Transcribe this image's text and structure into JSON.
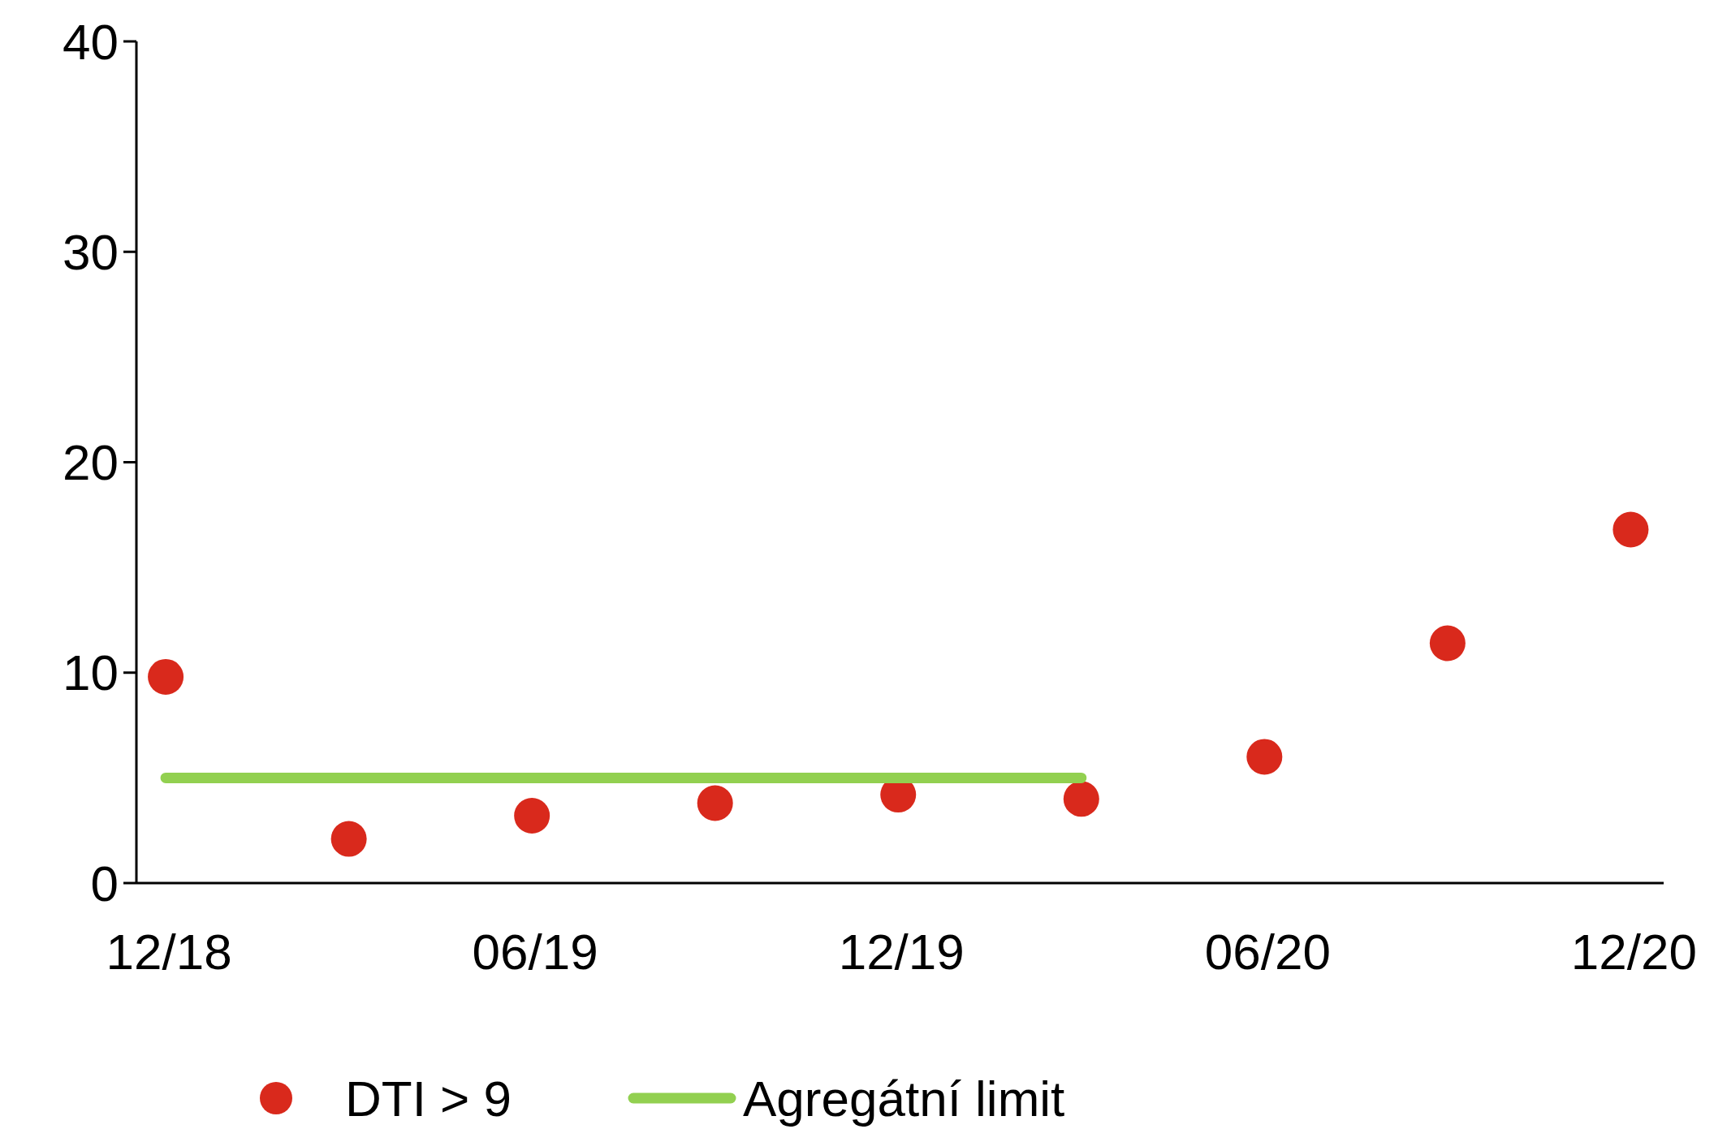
{
  "chart_data": {
    "type": "scatter",
    "categories": [
      "12/18",
      null,
      "06/19",
      null,
      "12/19",
      null,
      "06/20",
      null,
      "12/20"
    ],
    "series": [
      {
        "name": "DTI > 9",
        "marker": "circle",
        "color": "#d9291c",
        "values": [
          9.8,
          2.1,
          3.2,
          3.8,
          4.2,
          4.0,
          6.0,
          11.4,
          16.8
        ]
      },
      {
        "name": "Agregátní limit",
        "type": "line",
        "color": "#92d050",
        "values": [
          5,
          5,
          5,
          5,
          5,
          5,
          null,
          null,
          null
        ]
      }
    ],
    "ylim": [
      0,
      40
    ],
    "yticks": [
      0,
      10,
      20,
      30,
      40
    ],
    "grid": false,
    "legend": "bottom",
    "line_style": "solid"
  }
}
